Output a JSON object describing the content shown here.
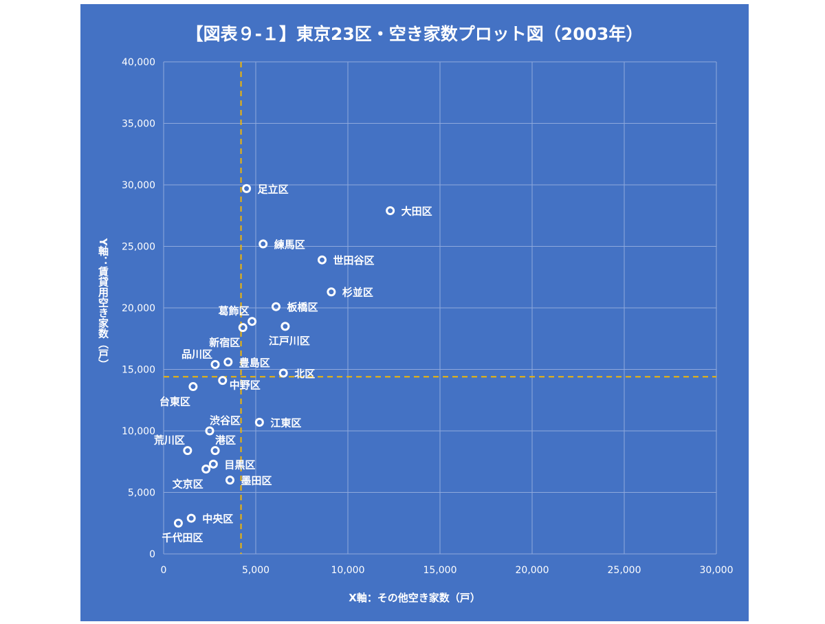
{
  "colors": {
    "background": "#4472c4",
    "marker": "#ffffff",
    "reference_line": "#f2b705",
    "grid": "#8fa9dc"
  },
  "chart_data": {
    "type": "scatter",
    "title": "【図表９-１】東京23区・空き家数プロット図（2003年）",
    "xlabel": "X軸：その他空き家数（戸）",
    "ylabel": "Y軸：賃貸用空き家数（戸）",
    "xlim": [
      0,
      30000
    ],
    "ylim": [
      0,
      40000
    ],
    "x_ticks": [
      0,
      5000,
      10000,
      15000,
      20000,
      25000,
      30000
    ],
    "x_tick_labels": [
      "0",
      "5,000",
      "10,000",
      "15,000",
      "20,000",
      "25,000",
      "30,000"
    ],
    "y_ticks": [
      0,
      5000,
      10000,
      15000,
      20000,
      25000,
      30000,
      35000,
      40000
    ],
    "y_tick_labels": [
      "0",
      "5,000",
      "10,000",
      "15,000",
      "20,000",
      "25,000",
      "30,000",
      "35,000",
      "40,000"
    ],
    "grid": true,
    "reference_lines": {
      "x": 4200,
      "y": 14400
    },
    "points": [
      {
        "label": "足立区",
        "x": 4500,
        "y": 29700,
        "anchor": "right"
      },
      {
        "label": "大田区",
        "x": 12300,
        "y": 27900,
        "anchor": "right"
      },
      {
        "label": "練馬区",
        "x": 5400,
        "y": 25200,
        "anchor": "right"
      },
      {
        "label": "世田谷区",
        "x": 8600,
        "y": 23900,
        "anchor": "right"
      },
      {
        "label": "杉並区",
        "x": 9100,
        "y": 21300,
        "anchor": "right"
      },
      {
        "label": "板橋区",
        "x": 6100,
        "y": 20100,
        "anchor": "right"
      },
      {
        "label": "葛飾区",
        "x": 4800,
        "y": 18900,
        "anchor": "above-left"
      },
      {
        "label": "新宿区",
        "x": 4300,
        "y": 18400,
        "anchor": "below-left"
      },
      {
        "label": "江戸川区",
        "x": 6600,
        "y": 18500,
        "anchor": "below"
      },
      {
        "label": "品川区",
        "x": 2800,
        "y": 15400,
        "anchor": "above-left"
      },
      {
        "label": "豊島区",
        "x": 3500,
        "y": 15600,
        "anchor": "right"
      },
      {
        "label": "北区",
        "x": 6500,
        "y": 14700,
        "anchor": "right"
      },
      {
        "label": "中野区",
        "x": 3200,
        "y": 14100,
        "anchor": "below-right"
      },
      {
        "label": "台東区",
        "x": 1600,
        "y": 13600,
        "anchor": "below-left"
      },
      {
        "label": "江東区",
        "x": 5200,
        "y": 10700,
        "anchor": "right"
      },
      {
        "label": "渋谷区",
        "x": 2500,
        "y": 10000,
        "anchor": "above-right"
      },
      {
        "label": "荒川区",
        "x": 1300,
        "y": 8400,
        "anchor": "above-left"
      },
      {
        "label": "港区",
        "x": 2800,
        "y": 8400,
        "anchor": "above-right"
      },
      {
        "label": "目黒区",
        "x": 2700,
        "y": 7300,
        "anchor": "right"
      },
      {
        "label": "文京区",
        "x": 2300,
        "y": 6900,
        "anchor": "below-left"
      },
      {
        "label": "墨田区",
        "x": 3600,
        "y": 6000,
        "anchor": "right"
      },
      {
        "label": "中央区",
        "x": 1500,
        "y": 2900,
        "anchor": "right"
      },
      {
        "label": "千代田区",
        "x": 800,
        "y": 2500,
        "anchor": "below"
      }
    ]
  }
}
